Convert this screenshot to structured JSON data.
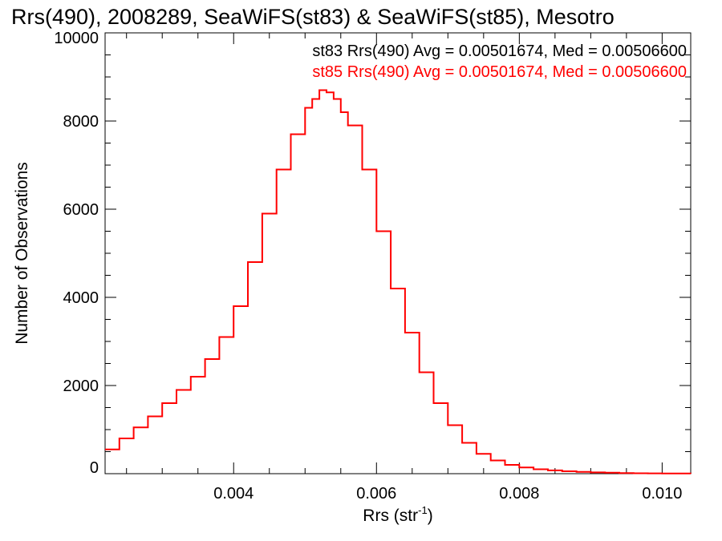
{
  "chart_data": {
    "type": "line",
    "title": "Rrs(490), 2008289, SeaWiFS(st83) & SeaWiFS(st85), Mesotro",
    "xlabel": "Rrs (str",
    "xlabel_sup": "-1",
    "xlabel_close": ")",
    "ylabel": "Number of Observations",
    "xlim": [
      0.0022,
      0.0104
    ],
    "ylim": [
      0,
      10000
    ],
    "x_ticks": [
      0.004,
      0.006,
      0.008,
      0.01
    ],
    "x_tick_labels": [
      "0.004",
      "0.006",
      "0.008",
      "0.010"
    ],
    "y_ticks": [
      0,
      2000,
      4000,
      6000,
      8000,
      10000
    ],
    "y_tick_labels": [
      "0",
      "2000",
      "4000",
      "6000",
      "8000",
      "10000"
    ],
    "grid": false,
    "step": true,
    "annotations": [
      {
        "text": "st83 Rrs(490) Avg = 0.00501674, Med = 0.00506600",
        "color": "#000000"
      },
      {
        "text": "st85 Rrs(490) Avg = 0.00501674, Med = 0.00506600",
        "color": "#ff0000"
      }
    ],
    "series": [
      {
        "color": "#ff0000",
        "x": [
          0.0022,
          0.0024,
          0.0026,
          0.0028,
          0.003,
          0.0032,
          0.0034,
          0.0036,
          0.0038,
          0.004,
          0.0042,
          0.0044,
          0.0046,
          0.0048,
          0.005,
          0.0051,
          0.0052,
          0.0053,
          0.0054,
          0.0055,
          0.0056,
          0.0058,
          0.006,
          0.0062,
          0.0064,
          0.0066,
          0.0068,
          0.007,
          0.0072,
          0.0074,
          0.0076,
          0.0078,
          0.008,
          0.0082,
          0.0084,
          0.0086,
          0.0088,
          0.009,
          0.0092,
          0.0094,
          0.0096,
          0.0098,
          0.01,
          0.0102,
          0.0104
        ],
        "y": [
          550,
          800,
          1050,
          1300,
          1600,
          1900,
          2200,
          2600,
          3100,
          3800,
          4800,
          5900,
          6900,
          7700,
          8300,
          8500,
          8700,
          8650,
          8500,
          8200,
          7900,
          6900,
          5500,
          4200,
          3200,
          2300,
          1600,
          1100,
          700,
          450,
          300,
          200,
          140,
          100,
          75,
          55,
          40,
          30,
          22,
          15,
          10,
          8,
          5,
          3,
          2
        ]
      }
    ]
  }
}
